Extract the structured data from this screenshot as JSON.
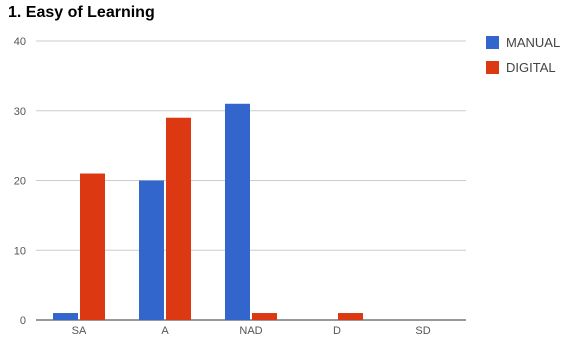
{
  "chart_data": {
    "type": "bar",
    "title": "1. Easy of Learning",
    "categories": [
      "SA",
      "A",
      "NAD",
      "D",
      "SD"
    ],
    "series": [
      {
        "name": "MANUAL",
        "values": [
          1,
          20,
          31,
          0,
          0
        ],
        "color": "#3366cc"
      },
      {
        "name": "DIGITAL",
        "values": [
          21,
          29,
          1,
          1,
          0
        ],
        "color": "#dc3912"
      }
    ],
    "yticks": [
      0,
      10,
      20,
      30,
      40
    ],
    "ylim": [
      0,
      40
    ],
    "xlabel": "",
    "ylabel": "",
    "grid": true,
    "legend_position": "right-top"
  }
}
